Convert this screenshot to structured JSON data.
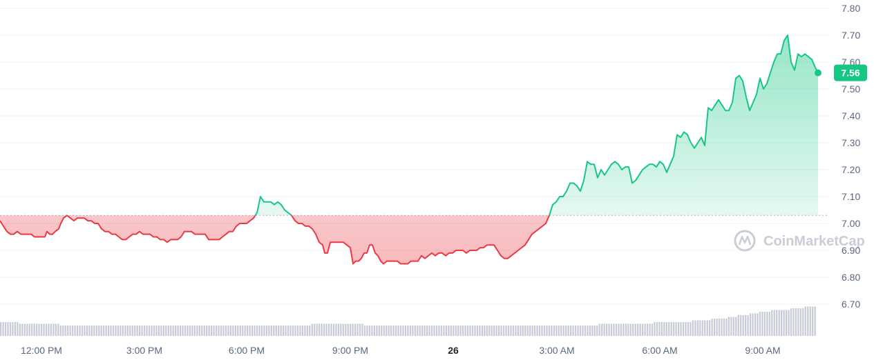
{
  "chart_data": {
    "type": "line",
    "ylim": [
      6.6,
      7.82
    ],
    "y_ticks": [
      "7.80",
      "7.70",
      "7.60",
      "7.50",
      "7.40",
      "7.30",
      "7.20",
      "7.10",
      "7.00",
      "6.90",
      "6.80",
      "6.70"
    ],
    "x_ticks": [
      "12:00 PM",
      "3:00 PM",
      "6:00 PM",
      "9:00 PM",
      "26",
      "3:00 AM",
      "6:00 AM",
      "9:00 AM"
    ],
    "x_ticks_bold": [
      false,
      false,
      false,
      false,
      true,
      false,
      false,
      false
    ],
    "reference_price": 7.03,
    "current_price": "7.56",
    "colors": {
      "up": "#16c784",
      "down": "#ea3943",
      "volume": "#c6cbd6",
      "grid": "#eff2f5",
      "reference": "#a6b0c3"
    },
    "watermark": "CoinMarketCap",
    "points": [
      [
        0,
        7.01
      ],
      [
        5,
        6.99
      ],
      [
        10,
        6.97
      ],
      [
        15,
        6.96
      ],
      [
        20,
        6.96
      ],
      [
        25,
        6.97
      ],
      [
        30,
        6.96
      ],
      [
        35,
        6.96
      ],
      [
        40,
        6.96
      ],
      [
        45,
        6.96
      ],
      [
        50,
        6.95
      ],
      [
        55,
        6.95
      ],
      [
        60,
        6.95
      ],
      [
        65,
        6.95
      ],
      [
        68,
        6.97
      ],
      [
        72,
        6.96
      ],
      [
        76,
        6.96
      ],
      [
        80,
        6.97
      ],
      [
        85,
        6.98
      ],
      [
        88,
        7.0
      ],
      [
        92,
        7.02
      ],
      [
        97,
        7.03
      ],
      [
        102,
        7.02
      ],
      [
        107,
        7.01
      ],
      [
        112,
        7.02
      ],
      [
        117,
        7.02
      ],
      [
        122,
        7.02
      ],
      [
        127,
        7.01
      ],
      [
        132,
        7.01
      ],
      [
        137,
        7.0
      ],
      [
        142,
        7.0
      ],
      [
        147,
        6.98
      ],
      [
        152,
        6.97
      ],
      [
        157,
        6.97
      ],
      [
        162,
        6.96
      ],
      [
        167,
        6.96
      ],
      [
        172,
        6.95
      ],
      [
        177,
        6.94
      ],
      [
        182,
        6.94
      ],
      [
        187,
        6.95
      ],
      [
        192,
        6.96
      ],
      [
        197,
        6.96
      ],
      [
        202,
        6.97
      ],
      [
        207,
        6.96
      ],
      [
        212,
        6.96
      ],
      [
        217,
        6.96
      ],
      [
        222,
        6.95
      ],
      [
        227,
        6.95
      ],
      [
        232,
        6.94
      ],
      [
        237,
        6.94
      ],
      [
        242,
        6.93
      ],
      [
        247,
        6.94
      ],
      [
        252,
        6.94
      ],
      [
        257,
        6.94
      ],
      [
        262,
        6.95
      ],
      [
        267,
        6.97
      ],
      [
        272,
        6.97
      ],
      [
        277,
        6.97
      ],
      [
        282,
        6.96
      ],
      [
        287,
        6.96
      ],
      [
        292,
        6.96
      ],
      [
        297,
        6.96
      ],
      [
        302,
        6.94
      ],
      [
        307,
        6.94
      ],
      [
        312,
        6.94
      ],
      [
        317,
        6.94
      ],
      [
        322,
        6.95
      ],
      [
        327,
        6.96
      ],
      [
        332,
        6.97
      ],
      [
        337,
        6.97
      ],
      [
        342,
        6.99
      ],
      [
        347,
        7.0
      ],
      [
        352,
        7.0
      ],
      [
        357,
        7.0
      ],
      [
        362,
        7.01
      ],
      [
        367,
        7.02
      ],
      [
        372,
        7.04
      ],
      [
        377,
        7.1
      ],
      [
        382,
        7.08
      ],
      [
        387,
        7.08
      ],
      [
        392,
        7.08
      ],
      [
        397,
        7.07
      ],
      [
        402,
        7.08
      ],
      [
        407,
        7.07
      ],
      [
        412,
        7.05
      ],
      [
        417,
        7.04
      ],
      [
        422,
        7.03
      ],
      [
        427,
        7.01
      ],
      [
        432,
        7.0
      ],
      [
        437,
        7.0
      ],
      [
        442,
        6.99
      ],
      [
        447,
        6.99
      ],
      [
        452,
        6.98
      ],
      [
        457,
        6.96
      ],
      [
        462,
        6.93
      ],
      [
        467,
        6.92
      ],
      [
        470,
        6.89
      ],
      [
        474,
        6.89
      ],
      [
        478,
        6.93
      ],
      [
        482,
        6.93
      ],
      [
        487,
        6.93
      ],
      [
        492,
        6.93
      ],
      [
        497,
        6.93
      ],
      [
        502,
        6.92
      ],
      [
        507,
        6.91
      ],
      [
        511,
        6.85
      ],
      [
        515,
        6.86
      ],
      [
        519,
        6.86
      ],
      [
        523,
        6.87
      ],
      [
        527,
        6.89
      ],
      [
        531,
        6.89
      ],
      [
        535,
        6.92
      ],
      [
        539,
        6.92
      ],
      [
        543,
        6.89
      ],
      [
        547,
        6.88
      ],
      [
        551,
        6.86
      ],
      [
        555,
        6.85
      ],
      [
        560,
        6.86
      ],
      [
        565,
        6.86
      ],
      [
        570,
        6.86
      ],
      [
        575,
        6.86
      ],
      [
        580,
        6.85
      ],
      [
        585,
        6.85
      ],
      [
        590,
        6.85
      ],
      [
        595,
        6.86
      ],
      [
        600,
        6.86
      ],
      [
        605,
        6.86
      ],
      [
        610,
        6.88
      ],
      [
        615,
        6.87
      ],
      [
        620,
        6.88
      ],
      [
        625,
        6.89
      ],
      [
        630,
        6.88
      ],
      [
        635,
        6.89
      ],
      [
        640,
        6.89
      ],
      [
        645,
        6.88
      ],
      [
        650,
        6.89
      ],
      [
        655,
        6.89
      ],
      [
        660,
        6.9
      ],
      [
        665,
        6.9
      ],
      [
        670,
        6.9
      ],
      [
        675,
        6.89
      ],
      [
        680,
        6.9
      ],
      [
        685,
        6.9
      ],
      [
        690,
        6.9
      ],
      [
        695,
        6.91
      ],
      [
        700,
        6.91
      ],
      [
        705,
        6.92
      ],
      [
        710,
        6.92
      ],
      [
        715,
        6.92
      ],
      [
        720,
        6.9
      ],
      [
        725,
        6.88
      ],
      [
        730,
        6.87
      ],
      [
        735,
        6.87
      ],
      [
        740,
        6.88
      ],
      [
        745,
        6.89
      ],
      [
        750,
        6.9
      ],
      [
        755,
        6.91
      ],
      [
        760,
        6.92
      ],
      [
        765,
        6.94
      ],
      [
        770,
        6.96
      ],
      [
        775,
        6.97
      ],
      [
        780,
        6.98
      ],
      [
        785,
        6.99
      ],
      [
        790,
        7.0
      ],
      [
        795,
        7.03
      ],
      [
        800,
        7.07
      ],
      [
        805,
        7.08
      ],
      [
        810,
        7.1
      ],
      [
        815,
        7.1
      ],
      [
        820,
        7.12
      ],
      [
        825,
        7.15
      ],
      [
        830,
        7.15
      ],
      [
        835,
        7.14
      ],
      [
        840,
        7.12
      ],
      [
        845,
        7.16
      ],
      [
        850,
        7.23
      ],
      [
        855,
        7.22
      ],
      [
        860,
        7.22
      ],
      [
        865,
        7.17
      ],
      [
        870,
        7.2
      ],
      [
        875,
        7.18
      ],
      [
        880,
        7.2
      ],
      [
        885,
        7.22
      ],
      [
        890,
        7.23
      ],
      [
        895,
        7.22
      ],
      [
        900,
        7.2
      ],
      [
        905,
        7.21
      ],
      [
        910,
        7.21
      ],
      [
        915,
        7.15
      ],
      [
        920,
        7.16
      ],
      [
        925,
        7.18
      ],
      [
        930,
        7.2
      ],
      [
        935,
        7.21
      ],
      [
        940,
        7.22
      ],
      [
        945,
        7.22
      ],
      [
        950,
        7.21
      ],
      [
        955,
        7.23
      ],
      [
        960,
        7.22
      ],
      [
        965,
        7.19
      ],
      [
        970,
        7.22
      ],
      [
        975,
        7.25
      ],
      [
        980,
        7.33
      ],
      [
        985,
        7.32
      ],
      [
        990,
        7.34
      ],
      [
        995,
        7.33
      ],
      [
        1000,
        7.3
      ],
      [
        1005,
        7.28
      ],
      [
        1010,
        7.3
      ],
      [
        1015,
        7.32
      ],
      [
        1020,
        7.29
      ],
      [
        1025,
        7.43
      ],
      [
        1030,
        7.42
      ],
      [
        1035,
        7.44
      ],
      [
        1040,
        7.46
      ],
      [
        1045,
        7.44
      ],
      [
        1050,
        7.42
      ],
      [
        1055,
        7.42
      ],
      [
        1060,
        7.45
      ],
      [
        1065,
        7.54
      ],
      [
        1070,
        7.55
      ],
      [
        1075,
        7.53
      ],
      [
        1080,
        7.47
      ],
      [
        1085,
        7.42
      ],
      [
        1090,
        7.45
      ],
      [
        1095,
        7.48
      ],
      [
        1100,
        7.54
      ],
      [
        1105,
        7.5
      ],
      [
        1110,
        7.52
      ],
      [
        1115,
        7.56
      ],
      [
        1120,
        7.6
      ],
      [
        1125,
        7.63
      ],
      [
        1130,
        7.63
      ],
      [
        1135,
        7.68
      ],
      [
        1140,
        7.7
      ],
      [
        1145,
        7.6
      ],
      [
        1150,
        7.57
      ],
      [
        1155,
        7.63
      ],
      [
        1160,
        7.62
      ],
      [
        1165,
        7.63
      ],
      [
        1170,
        7.62
      ],
      [
        1175,
        7.61
      ],
      [
        1180,
        7.58
      ],
      [
        1184,
        7.56
      ]
    ],
    "volume": [
      0.68,
      0.68,
      0.68,
      0.68,
      0.68,
      0.68,
      0.68,
      0.68,
      0.67,
      0.67,
      0.67,
      0.67,
      0.67,
      0.67,
      0.67,
      0.67,
      0.67,
      0.67,
      0.67,
      0.67,
      0.67,
      0.67,
      0.67,
      0.67,
      0.67,
      0.66,
      0.66,
      0.66,
      0.66,
      0.66,
      0.66,
      0.66,
      0.66,
      0.66,
      0.66,
      0.66,
      0.66,
      0.66,
      0.66,
      0.66,
      0.66,
      0.66,
      0.66,
      0.66,
      0.66,
      0.66,
      0.66,
      0.66,
      0.66,
      0.66,
      0.66,
      0.66,
      0.66,
      0.66,
      0.66,
      0.66,
      0.66,
      0.66,
      0.66,
      0.66,
      0.66,
      0.66,
      0.66,
      0.66,
      0.66,
      0.66,
      0.66,
      0.66,
      0.66,
      0.66,
      0.66,
      0.66,
      0.66,
      0.66,
      0.66,
      0.66,
      0.66,
      0.66,
      0.66,
      0.66,
      0.66,
      0.66,
      0.66,
      0.66,
      0.66,
      0.66,
      0.66,
      0.66,
      0.66,
      0.66,
      0.66,
      0.66,
      0.66,
      0.66,
      0.66,
      0.66,
      0.66,
      0.66,
      0.66,
      0.66,
      0.66,
      0.66,
      0.66,
      0.66,
      0.66,
      0.66,
      0.66,
      0.66,
      0.66,
      0.66,
      0.66,
      0.66,
      0.66,
      0.66,
      0.66,
      0.66,
      0.66,
      0.66,
      0.66,
      0.66,
      0.66,
      0.66,
      0.66,
      0.66,
      0.66,
      0.66,
      0.66,
      0.66,
      0.66,
      0.66,
      0.67,
      0.67,
      0.67,
      0.67,
      0.67,
      0.67,
      0.67,
      0.67,
      0.67,
      0.67,
      0.67,
      0.67,
      0.67,
      0.67,
      0.67,
      0.67,
      0.67,
      0.67,
      0.67,
      0.67,
      0.67,
      0.67,
      0.66,
      0.66,
      0.66,
      0.66,
      0.66,
      0.66,
      0.66,
      0.66,
      0.66,
      0.66,
      0.66,
      0.66,
      0.66,
      0.66,
      0.66,
      0.66,
      0.66,
      0.66,
      0.66,
      0.66,
      0.66,
      0.66,
      0.66,
      0.66,
      0.66,
      0.66,
      0.66,
      0.66,
      0.66,
      0.66,
      0.66,
      0.66,
      0.66,
      0.66,
      0.66,
      0.66,
      0.66,
      0.66,
      0.66,
      0.66,
      0.66,
      0.66,
      0.66,
      0.66,
      0.66,
      0.66,
      0.66,
      0.66,
      0.66,
      0.66,
      0.66,
      0.66,
      0.66,
      0.66,
      0.66,
      0.66,
      0.66,
      0.66,
      0.66,
      0.66,
      0.66,
      0.66,
      0.66,
      0.66,
      0.66,
      0.66,
      0.66,
      0.66,
      0.66,
      0.66,
      0.66,
      0.66,
      0.66,
      0.66,
      0.66,
      0.66,
      0.66,
      0.66,
      0.66,
      0.66,
      0.66,
      0.66,
      0.66,
      0.66,
      0.66,
      0.66,
      0.66,
      0.66,
      0.66,
      0.66,
      0.66,
      0.66,
      0.66,
      0.66,
      0.66,
      0.66,
      0.66,
      0.66,
      0.67,
      0.67,
      0.67,
      0.67,
      0.67,
      0.67,
      0.67,
      0.67,
      0.67,
      0.67,
      0.67,
      0.67,
      0.67,
      0.67,
      0.67,
      0.67,
      0.67,
      0.67,
      0.67,
      0.67,
      0.67,
      0.67,
      0.67,
      0.68,
      0.68,
      0.68,
      0.68,
      0.68,
      0.68,
      0.68,
      0.68,
      0.68,
      0.68,
      0.68,
      0.68,
      0.68,
      0.68,
      0.68,
      0.68,
      0.69,
      0.69,
      0.69,
      0.69,
      0.69,
      0.69,
      0.69,
      0.69,
      0.7,
      0.7,
      0.7,
      0.7,
      0.7,
      0.7,
      0.7,
      0.71,
      0.71,
      0.71,
      0.71,
      0.72,
      0.72,
      0.72,
      0.72,
      0.72,
      0.73,
      0.73,
      0.73,
      0.73,
      0.74,
      0.74,
      0.74,
      0.74,
      0.74,
      0.75,
      0.75,
      0.75,
      0.75,
      0.75,
      0.75,
      0.75,
      0.75,
      0.76,
      0.76,
      0.76,
      0.76,
      0.76,
      0.76,
      0.77,
      0.77,
      0.77,
      0.77,
      0.77
    ]
  }
}
